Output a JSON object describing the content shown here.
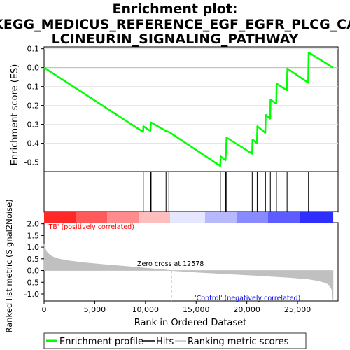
{
  "title": {
    "line1": "Enrichment plot:",
    "line2": "KEGG_MEDICUS_REFERENCE_EGF_EGFR_PLCG_CA",
    "line3": "LCINEURIN_SIGNALING_PATHWAY"
  },
  "chart_data": {
    "type": "line",
    "es_panel": {
      "ylabel": "Enrichment score (ES)",
      "ylim": [
        -0.55,
        0.11
      ],
      "yticks": [
        "0.1",
        "0.0",
        "-0.1",
        "-0.2",
        "-0.3",
        "-0.4",
        "-0.5"
      ],
      "ytick_values": [
        0.1,
        0.0,
        -0.1,
        -0.2,
        -0.3,
        -0.4,
        -0.5
      ],
      "series": [
        {
          "name": "Enrichment profile",
          "color": "#00ff00",
          "x": [
            0,
            9780,
            9790,
            10480,
            10520,
            10560,
            12020,
            12300,
            12320,
            17380,
            17420,
            17900,
            17960,
            18000,
            20520,
            20560,
            21000,
            21040,
            21820,
            21860,
            22300,
            22340,
            22900,
            22940,
            23950,
            24000,
            26050,
            26100,
            28500
          ],
          "y": [
            0.0,
            -0.34,
            -0.31,
            -0.335,
            -0.3,
            -0.29,
            -0.335,
            -0.34,
            -0.34,
            -0.52,
            -0.47,
            -0.49,
            -0.43,
            -0.37,
            -0.455,
            -0.38,
            -0.4,
            -0.31,
            -0.345,
            -0.25,
            -0.27,
            -0.17,
            -0.19,
            -0.085,
            -0.12,
            -0.005,
            -0.08,
            0.08,
            0.0
          ]
        }
      ]
    },
    "hits": {
      "name": "Hits",
      "x": [
        9790,
        10500,
        10560,
        12030,
        12310,
        17390,
        17920,
        18010,
        20530,
        21020,
        21840,
        22320,
        22920,
        23970,
        26080
      ]
    },
    "rank_panel": {
      "ylabel": "Ranked list metric (Signal2Noise)",
      "xlabel": "Rank in Ordered Dataset",
      "ylim": [
        -1.3,
        2.05
      ],
      "yticks": [
        "2.0",
        "1.5",
        "1.0",
        "0.5",
        "0.0",
        "-0.5",
        "-1.0"
      ],
      "ytick_values": [
        2.0,
        1.5,
        1.0,
        0.5,
        0.0,
        -0.5,
        -1.0
      ],
      "xlim": [
        0,
        29000
      ],
      "xticks": [
        "0",
        "5,000",
        "10,000",
        "15,000",
        "20,000",
        "25,000"
      ],
      "xtick_values": [
        0,
        5000,
        10000,
        15000,
        20000,
        25000
      ],
      "series": [
        {
          "name": "Ranking metric scores",
          "color": "#c0c0c0",
          "x": [
            0,
            100,
            300,
            600,
            1000,
            1500,
            2500,
            4000,
            6000,
            8000,
            10000,
            12578,
            15000,
            18000,
            21000,
            24000,
            26000,
            27000,
            27600,
            28000,
            28200,
            28350,
            28450,
            28500
          ],
          "y": [
            1.15,
            0.95,
            0.78,
            0.65,
            0.56,
            0.49,
            0.41,
            0.33,
            0.25,
            0.18,
            0.1,
            0.0,
            -0.07,
            -0.14,
            -0.21,
            -0.29,
            -0.36,
            -0.43,
            -0.5,
            -0.57,
            -0.65,
            -0.78,
            -0.95,
            -1.25
          ]
        }
      ],
      "zero_cross": 12578,
      "zero_cross_label": "Zero cross at 12578",
      "pos_label": "'TB' (positively correlated)",
      "neg_label": "'Control' (negatively correlated)",
      "pos_color": "#ff0000",
      "neg_color": "#0000ff"
    },
    "legend": {
      "placement": "bottom",
      "entries": [
        {
          "label": "Enrichment profile",
          "color": "#00ff00"
        },
        {
          "label": "Hits",
          "color": "#000000"
        },
        {
          "label": "Ranking metric scores",
          "color": "#c0c0c0"
        }
      ]
    },
    "colors": {
      "profile": "#00ff00",
      "hit": "#000000",
      "metric": "#c0c0c0",
      "zero_cross_line": "#c0c0c0"
    }
  }
}
